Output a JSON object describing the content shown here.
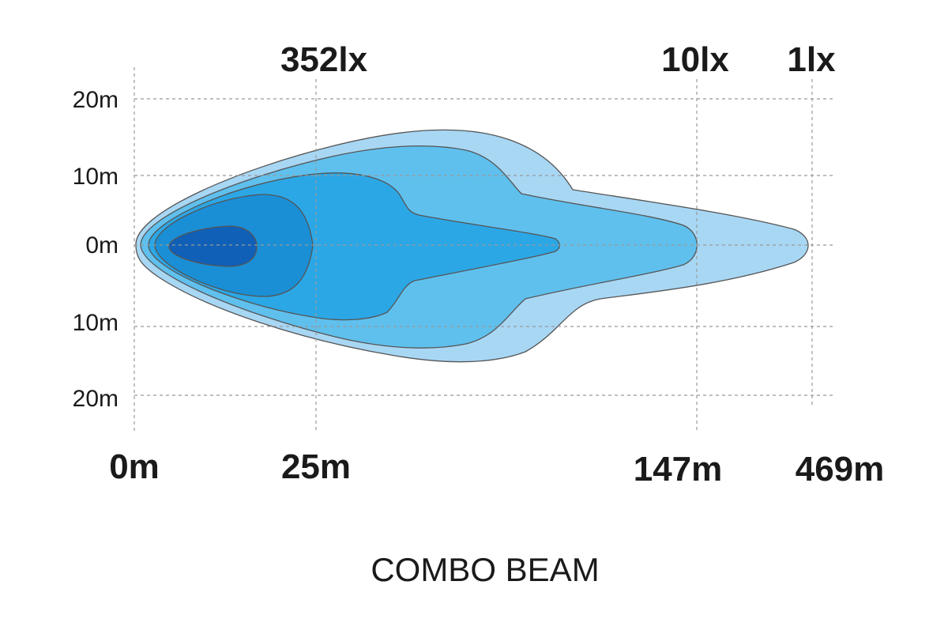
{
  "lux_labels": [
    "352lx",
    "10lx",
    "1lx"
  ],
  "x_labels": [
    "0m",
    "25m",
    "147m",
    "469m"
  ],
  "y_labels": [
    "20m",
    "10m",
    "0m",
    "10m",
    "20m"
  ],
  "caption": "COMBO BEAM"
}
